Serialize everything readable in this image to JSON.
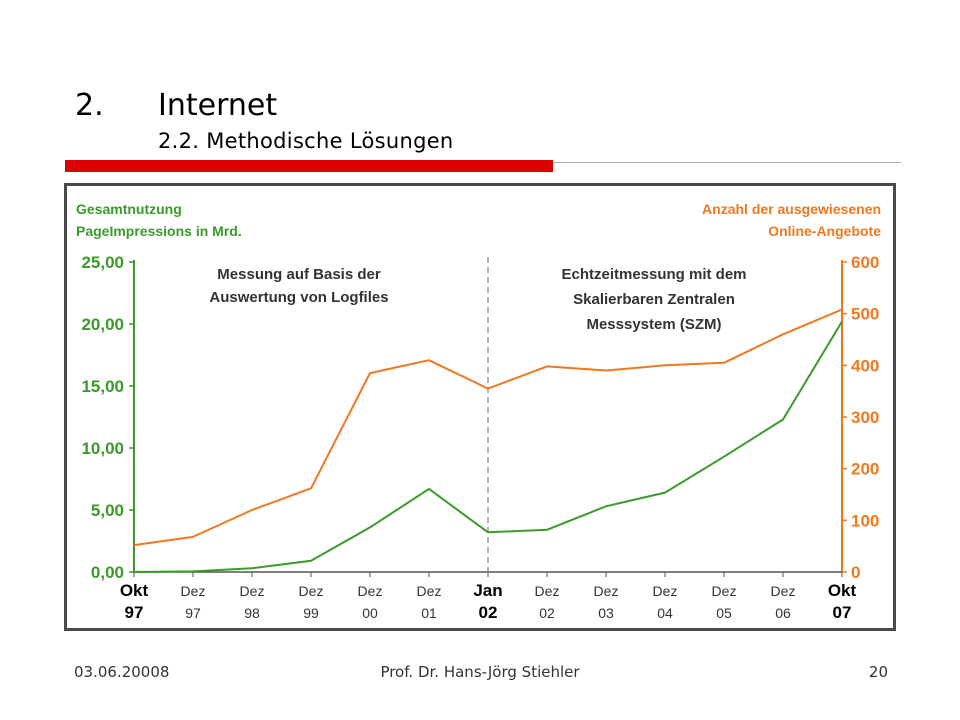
{
  "slide": {
    "number": "2.",
    "title": "Internet",
    "subtitle": "2.2. Methodische Lösungen"
  },
  "footer": {
    "date": "03.06.20008",
    "author": "Prof. Dr. Hans-Jörg Stiehler",
    "page": "20"
  },
  "colors": {
    "left_axis": "#3a9a2a",
    "right_axis": "#f07820",
    "divider": "#999999"
  },
  "chart_data": {
    "type": "line",
    "left_axis_title": [
      "Gesamtnutzung",
      "PageImpressions in Mrd."
    ],
    "right_axis_title": [
      "Anzahl der ausgewiesenen",
      "Online-Angebote"
    ],
    "annotations": {
      "left": [
        "Messung auf Basis der",
        "Auswertung von Logfiles"
      ],
      "right": [
        "Echtzeitmessung mit dem",
        "Skalierbaren Zentralen",
        "Messsystem (SZM)"
      ]
    },
    "x_labels": [
      [
        "Okt",
        "97",
        true
      ],
      [
        "Dez",
        "97",
        false
      ],
      [
        "Dez",
        "98",
        false
      ],
      [
        "Dez",
        "99",
        false
      ],
      [
        "Dez",
        "00",
        false
      ],
      [
        "Dez",
        "01",
        false
      ],
      [
        "Jan",
        "02",
        true
      ],
      [
        "Dez",
        "02",
        false
      ],
      [
        "Dez",
        "03",
        false
      ],
      [
        "Dez",
        "04",
        false
      ],
      [
        "Dez",
        "05",
        false
      ],
      [
        "Dez",
        "06",
        false
      ],
      [
        "Okt",
        "07",
        true
      ]
    ],
    "y_left": {
      "ticks": [
        "0,00",
        "5,00",
        "10,00",
        "15,00",
        "20,00",
        "25,00"
      ],
      "min": 0,
      "max": 25
    },
    "y_right": {
      "ticks": [
        "0",
        "100",
        "200",
        "300",
        "400",
        "500",
        "600"
      ],
      "min": 0,
      "max": 600
    },
    "divider_index": 6,
    "series": [
      {
        "axis": "left",
        "values": [
          0.0,
          0.05,
          0.3,
          0.9,
          3.6,
          6.7,
          3.2,
          3.4,
          5.3,
          6.4,
          9.3,
          12.3,
          20.2
        ]
      },
      {
        "axis": "right",
        "values": [
          52,
          68,
          120,
          162,
          385,
          410,
          355,
          398,
          390,
          400,
          405,
          460,
          508
        ]
      }
    ]
  }
}
